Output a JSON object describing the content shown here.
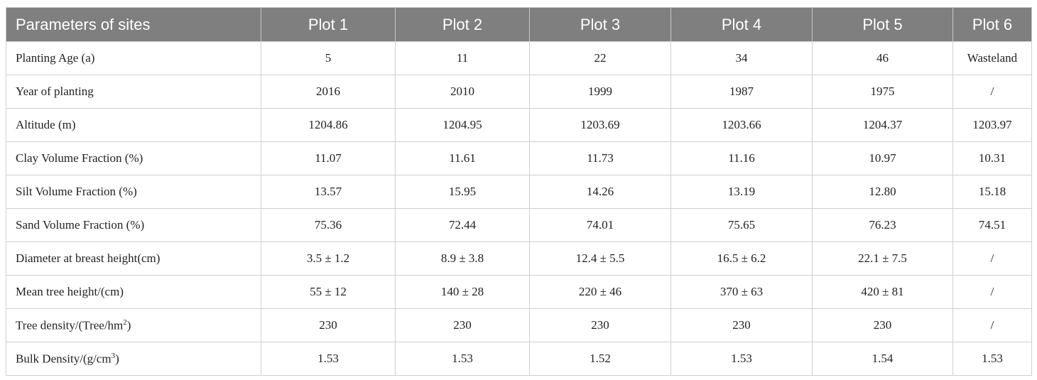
{
  "table": {
    "header": [
      "Parameters of sites",
      "Plot 1",
      "Plot 2",
      "Plot 3",
      "Plot 4",
      "Plot 5",
      "Plot 6"
    ],
    "rows": [
      [
        {
          "text": "Planting Age (a)"
        },
        "5",
        "11",
        "22",
        "34",
        "46",
        "Wasteland"
      ],
      [
        {
          "text": "Year of planting"
        },
        "2016",
        "2010",
        "1999",
        "1987",
        "1975",
        "/"
      ],
      [
        {
          "text": "Altitude (m)"
        },
        "1204.86",
        "1204.95",
        "1203.69",
        "1203.66",
        "1204.37",
        "1203.97"
      ],
      [
        {
          "text": "Clay Volume Fraction (%)"
        },
        "11.07",
        "11.61",
        "11.73",
        "11.16",
        "10.97",
        "10.31"
      ],
      [
        {
          "text": "Silt Volume Fraction (%)"
        },
        "13.57",
        "15.95",
        "14.26",
        "13.19",
        "12.80",
        "15.18"
      ],
      [
        {
          "text": "Sand Volume Fraction (%)"
        },
        "75.36",
        "72.44",
        "74.01",
        "75.65",
        "76.23",
        "74.51"
      ],
      [
        {
          "text": "Diameter at breast height(cm)"
        },
        "3.5 ± 1.2",
        "8.9 ± 3.8",
        "12.4 ± 5.5",
        "16.5 ± 6.2",
        "22.1 ± 7.5",
        "/"
      ],
      [
        {
          "text": "Mean tree height/(cm)"
        },
        "55 ± 12",
        "140 ± 28",
        "220 ± 46",
        "370 ± 63",
        "420 ± 81",
        "/"
      ],
      [
        {
          "text": "Tree density/(Tree/hm",
          "sup": "2",
          "after": ")"
        },
        "230",
        "230",
        "230",
        "230",
        "230",
        "/"
      ],
      [
        {
          "text": "Bulk Density/(g/cm",
          "sup": "3",
          "after": ")"
        },
        "1.53",
        "1.53",
        "1.52",
        "1.53",
        "1.54",
        "1.53"
      ]
    ]
  }
}
